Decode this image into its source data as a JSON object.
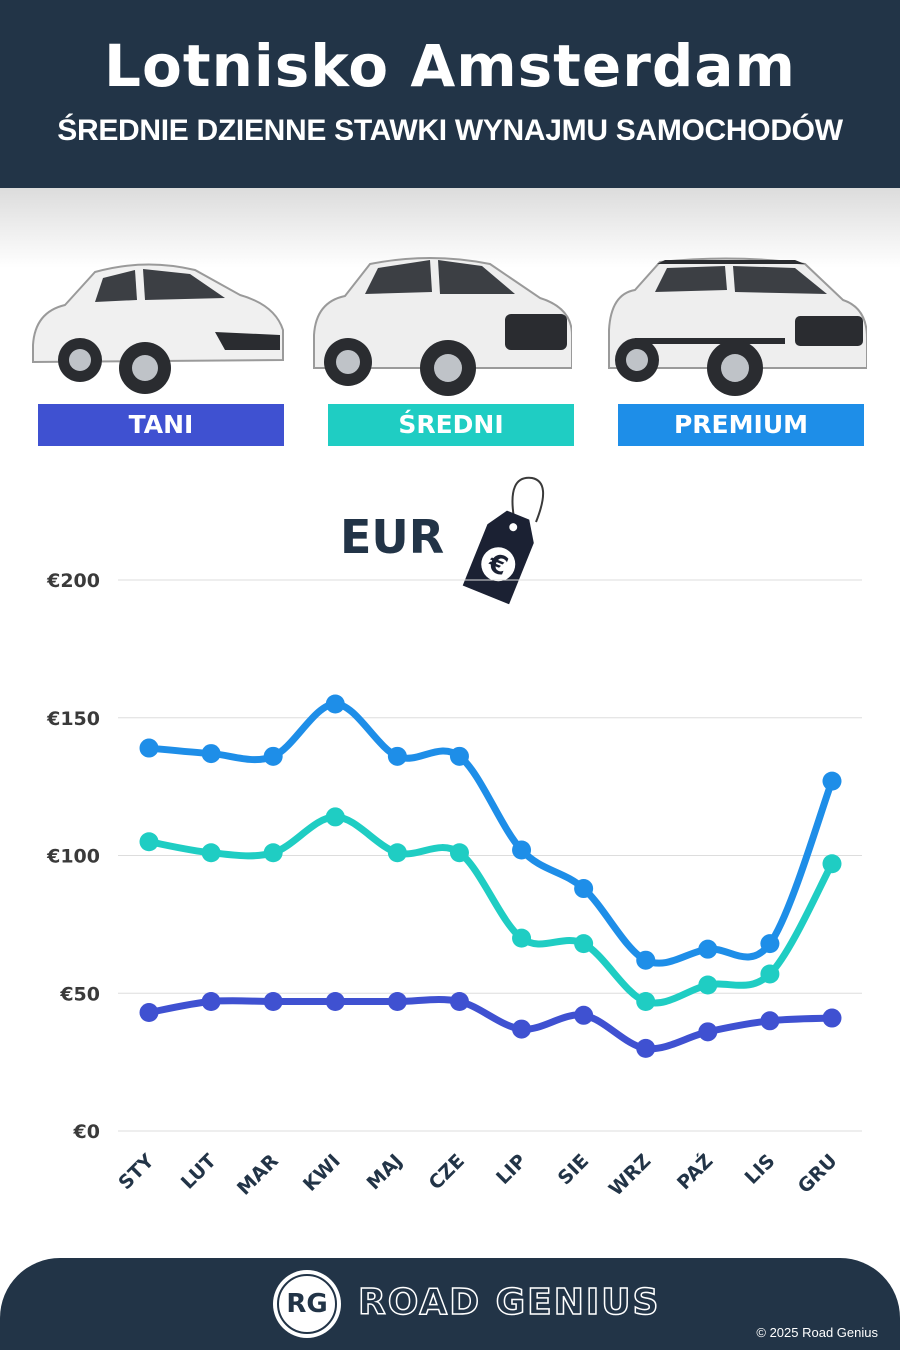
{
  "header": {
    "title": "Lotnisko Amsterdam",
    "subtitle": "ŚREDNIE DZIENNE STAWKI WYNAJMU SAMOCHODÓW"
  },
  "categories": [
    {
      "label": "TANI",
      "color": "#3f51d1"
    },
    {
      "label": "ŚREDNI",
      "color": "#1fcdc3"
    },
    {
      "label": "PREMIUM",
      "color": "#1e8ee8"
    }
  ],
  "currency": {
    "label": "EUR",
    "icon": "price-tag-euro-icon",
    "symbol": "€"
  },
  "chart_data": {
    "type": "line",
    "x": [
      "STY",
      "LUT",
      "MAR",
      "KWI",
      "MAJ",
      "CZE",
      "LIP",
      "SIE",
      "WRZ",
      "PAŹ",
      "LIS",
      "GRU"
    ],
    "y_ticks": [
      "€0",
      "€50",
      "€100",
      "€150",
      "€200"
    ],
    "ylim": [
      0,
      200
    ],
    "grid": true,
    "series": [
      {
        "name": "TANI",
        "color": "#3f51d1",
        "values": [
          43,
          47,
          47,
          47,
          47,
          47,
          37,
          42,
          30,
          36,
          40,
          41
        ]
      },
      {
        "name": "ŚREDNI",
        "color": "#1fcdc3",
        "values": [
          105,
          101,
          101,
          114,
          101,
          101,
          70,
          68,
          47,
          53,
          57,
          97
        ]
      },
      {
        "name": "PREMIUM",
        "color": "#1e8ee8",
        "values": [
          139,
          137,
          136,
          155,
          136,
          136,
          102,
          88,
          62,
          66,
          68,
          127
        ]
      }
    ]
  },
  "footer": {
    "logo_text": "RG",
    "brand": "ROAD GENIUS",
    "copyright": "© 2025 Road Genius"
  }
}
